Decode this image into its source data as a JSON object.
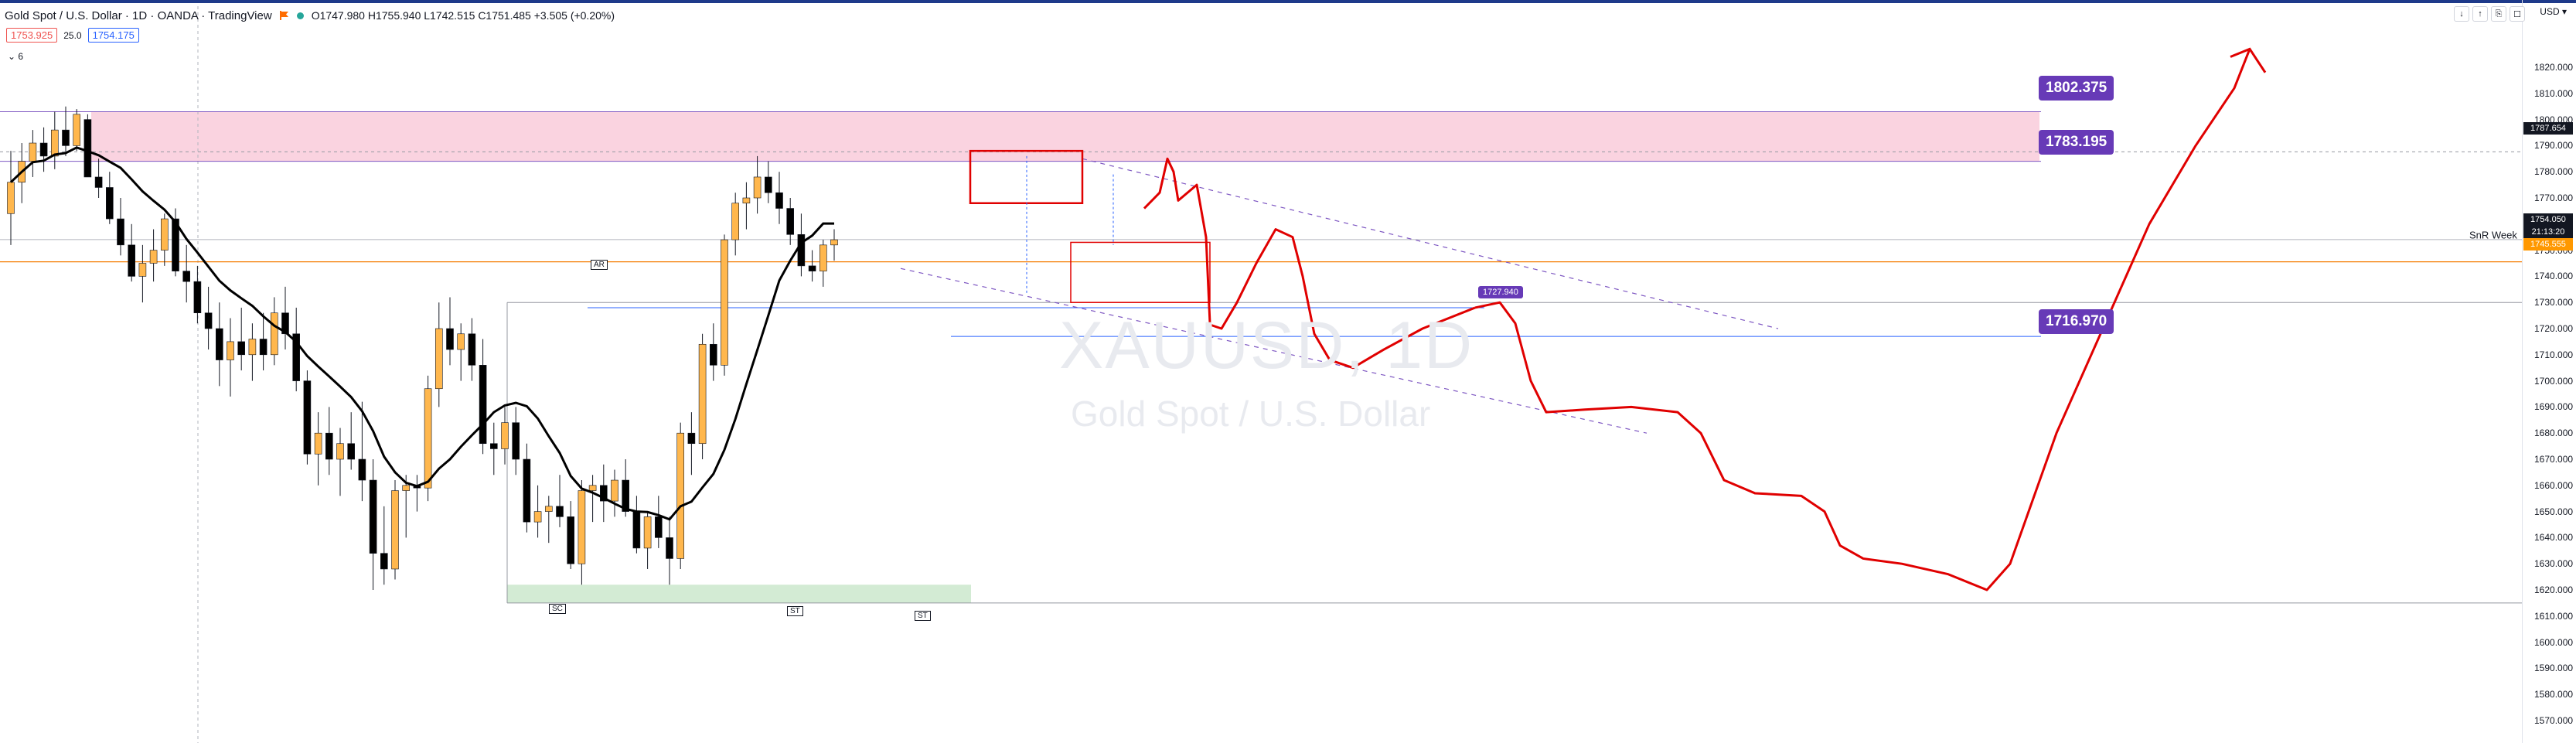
{
  "header": {
    "title": "Gold Spot / U.S. Dollar · 1D · OANDA · TradingView",
    "ohlc": "O1747.980 H1755.940 L1742.515 C1751.485 +3.505 (+0.20%)",
    "flag_icon": "flag-icon",
    "status_icon": "live-dot-icon"
  },
  "legend": {
    "sell_price": "1753.925",
    "spread": "25.0",
    "buy_price": "1754.175"
  },
  "indicators": {
    "collapse_label": "⌄ 6"
  },
  "window_controls": [
    "↓",
    "↑",
    "⎘",
    "☐"
  ],
  "currency": "USD ▾",
  "watermark": {
    "symbol": "XAUUSD, 1D",
    "name": "Gold Spot / U.S. Dollar"
  },
  "levels": {
    "top": "1802.375",
    "mid": "1783.195",
    "low": "1716.970",
    "small": "1727.940"
  },
  "axis": {
    "ticks": [
      "1820.000",
      "1810.000",
      "1800.000",
      "1790.000",
      "1780.000",
      "1770.000",
      "1760.000",
      "1750.000",
      "1740.000",
      "1730.000",
      "1720.000",
      "1710.000",
      "1700.000",
      "1690.000",
      "1680.000",
      "1670.000",
      "1660.000",
      "1650.000",
      "1640.000",
      "1630.000",
      "1620.000",
      "1610.000",
      "1600.000",
      "1590.000",
      "1580.000",
      "1570.000"
    ],
    "flag_dashed": "1787.654",
    "flag_price": "1754.050",
    "flag_timer": "21:13:20",
    "flag_snr": "1745.555"
  },
  "snr_label": "SnR Week",
  "markers": {
    "ar": "AR",
    "sc": "SC",
    "st1": "ST",
    "st2": "ST"
  },
  "colors": {
    "up": "#ffb74d",
    "down": "#000000",
    "purple": "#673ab7",
    "red": "#e00000",
    "zone_pink": "#f8bbd0",
    "zone_green": "#c8e6c9",
    "snr": "#f57c00"
  },
  "chart_data": {
    "type": "candlestick",
    "ylim": [
      1565,
      1825
    ],
    "candles": [
      [
        1764,
        1788,
        1752,
        1776
      ],
      [
        1776,
        1791,
        1768,
        1784
      ],
      [
        1784,
        1796,
        1778,
        1791
      ],
      [
        1791,
        1797,
        1780,
        1786
      ],
      [
        1786,
        1803,
        1781,
        1796
      ],
      [
        1796,
        1805,
        1786,
        1790
      ],
      [
        1790,
        1804,
        1788,
        1802
      ],
      [
        1800,
        1802,
        1778,
        1778
      ],
      [
        1778,
        1785,
        1770,
        1774
      ],
      [
        1774,
        1780,
        1760,
        1762
      ],
      [
        1762,
        1770,
        1748,
        1752
      ],
      [
        1752,
        1760,
        1738,
        1740
      ],
      [
        1740,
        1752,
        1730,
        1745
      ],
      [
        1745,
        1758,
        1738,
        1750
      ],
      [
        1750,
        1764,
        1744,
        1762
      ],
      [
        1762,
        1766,
        1740,
        1742
      ],
      [
        1742,
        1752,
        1730,
        1738
      ],
      [
        1738,
        1744,
        1722,
        1726
      ],
      [
        1726,
        1736,
        1712,
        1720
      ],
      [
        1720,
        1730,
        1698,
        1708
      ],
      [
        1708,
        1724,
        1694,
        1715
      ],
      [
        1715,
        1728,
        1704,
        1710
      ],
      [
        1710,
        1722,
        1700,
        1716
      ],
      [
        1716,
        1726,
        1704,
        1710
      ],
      [
        1710,
        1732,
        1706,
        1726
      ],
      [
        1726,
        1736,
        1712,
        1718
      ],
      [
        1718,
        1728,
        1696,
        1700
      ],
      [
        1700,
        1704,
        1668,
        1672
      ],
      [
        1672,
        1688,
        1660,
        1680
      ],
      [
        1680,
        1690,
        1664,
        1670
      ],
      [
        1670,
        1682,
        1656,
        1676
      ],
      [
        1676,
        1688,
        1666,
        1670
      ],
      [
        1670,
        1692,
        1654,
        1662
      ],
      [
        1662,
        1670,
        1620,
        1634
      ],
      [
        1634,
        1652,
        1622,
        1628
      ],
      [
        1628,
        1662,
        1624,
        1658
      ],
      [
        1658,
        1664,
        1640,
        1660
      ],
      [
        1660,
        1664,
        1650,
        1659
      ],
      [
        1659,
        1702,
        1654,
        1697
      ],
      [
        1697,
        1730,
        1690,
        1720
      ],
      [
        1720,
        1732,
        1706,
        1712
      ],
      [
        1712,
        1722,
        1700,
        1718
      ],
      [
        1718,
        1724,
        1700,
        1706
      ],
      [
        1706,
        1716,
        1672,
        1676
      ],
      [
        1676,
        1684,
        1664,
        1674
      ],
      [
        1674,
        1690,
        1668,
        1684
      ],
      [
        1684,
        1690,
        1664,
        1670
      ],
      [
        1670,
        1676,
        1642,
        1646
      ],
      [
        1646,
        1660,
        1640,
        1650
      ],
      [
        1650,
        1656,
        1638,
        1652
      ],
      [
        1652,
        1664,
        1644,
        1648
      ],
      [
        1648,
        1654,
        1628,
        1630
      ],
      [
        1630,
        1662,
        1622,
        1658
      ],
      [
        1658,
        1664,
        1646,
        1660
      ],
      [
        1660,
        1668,
        1646,
        1654
      ],
      [
        1654,
        1666,
        1648,
        1662
      ],
      [
        1662,
        1670,
        1648,
        1650
      ],
      [
        1650,
        1656,
        1634,
        1636
      ],
      [
        1636,
        1650,
        1628,
        1648
      ],
      [
        1648,
        1656,
        1636,
        1640
      ],
      [
        1640,
        1648,
        1622,
        1632
      ],
      [
        1632,
        1684,
        1628,
        1680
      ],
      [
        1680,
        1688,
        1664,
        1676
      ],
      [
        1676,
        1718,
        1670,
        1714
      ],
      [
        1714,
        1722,
        1700,
        1706
      ],
      [
        1706,
        1756,
        1702,
        1754
      ],
      [
        1754,
        1772,
        1748,
        1768
      ],
      [
        1768,
        1776,
        1758,
        1770
      ],
      [
        1770,
        1786,
        1764,
        1778
      ],
      [
        1778,
        1784,
        1768,
        1772
      ],
      [
        1772,
        1780,
        1760,
        1766
      ],
      [
        1766,
        1770,
        1752,
        1756
      ],
      [
        1756,
        1764,
        1740,
        1744
      ],
      [
        1744,
        1750,
        1738,
        1742
      ],
      [
        1742,
        1754,
        1736,
        1752
      ],
      [
        1752,
        1758,
        1746,
        1754
      ]
    ]
  }
}
